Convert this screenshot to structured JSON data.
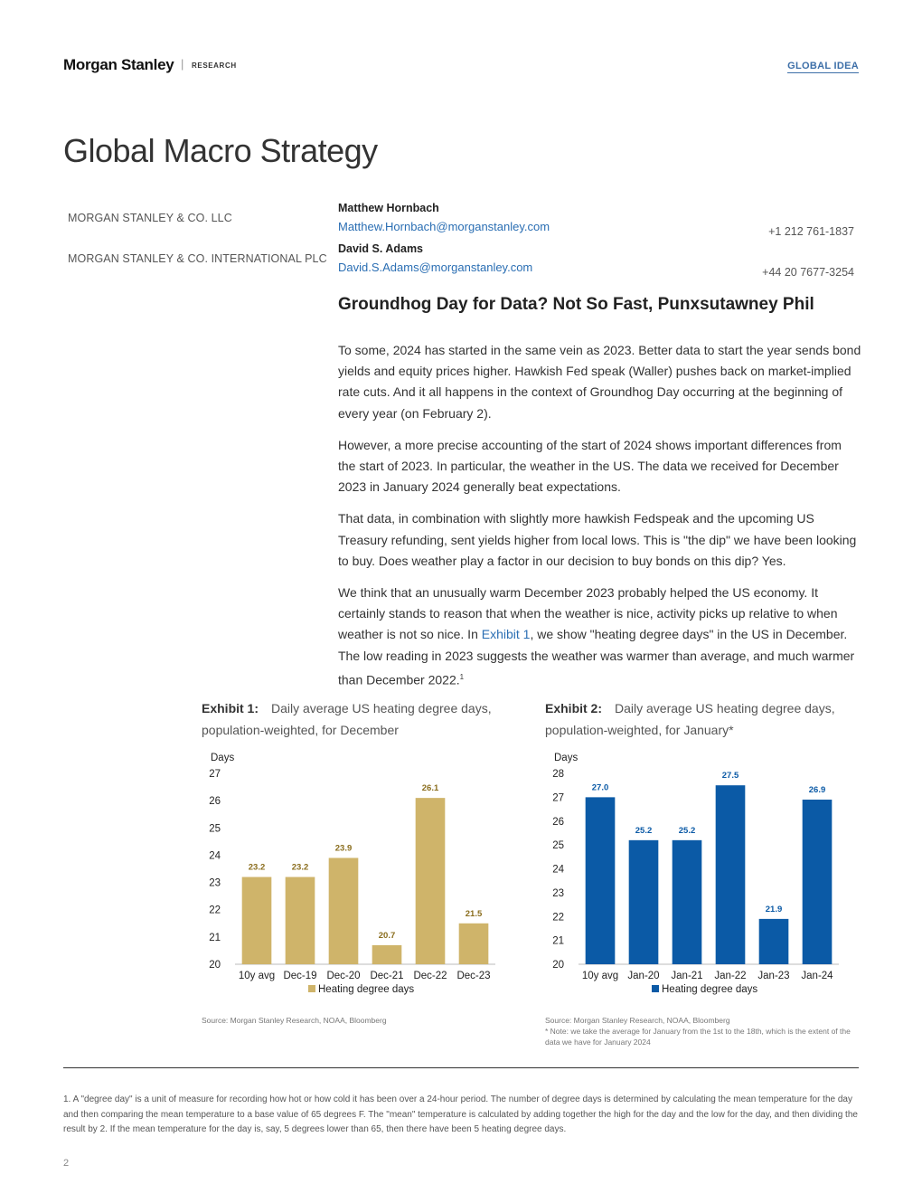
{
  "header": {
    "logo": "Morgan Stanley",
    "research": "RESEARCH",
    "tag": "GLOBAL IDEA"
  },
  "title": "Global Macro Strategy",
  "entities": [
    "MORGAN STANLEY & CO. LLC",
    "MORGAN STANLEY & CO. INTERNATIONAL PLC"
  ],
  "authors": [
    {
      "name": "Matthew Hornbach",
      "email": "Matthew.Hornbach@morganstanley.com",
      "phone": "+1 212 761-1837"
    },
    {
      "name": "David S. Adams",
      "email": "David.S.Adams@morganstanley.com",
      "phone": "+44 20 7677-3254"
    }
  ],
  "headline": "Groundhog Day for Data? Not So Fast, Punxsutawney Phil",
  "paragraphs": [
    "To some, 2024 has started in the same vein as 2023. Better data to start the year sends bond yields and equity prices higher. Hawkish Fed speak (Waller) pushes back on market-implied rate cuts. And it all happens in the context of Groundhog Day occurring at the beginning of every year (on February 2).",
    "However, a more precise accounting of the start of 2024 shows important differences from the start of 2023. In particular, the weather in the US. The data we received for December 2023 in January 2024 generally beat expectations.",
    "That data, in combination with slightly more hawkish Fedspeak and the upcoming US Treasury refunding, sent yields higher from local lows. This is \"the dip\" we have been looking to buy. Does weather play a factor in our decision to buy bonds on this dip? Yes."
  ],
  "paragraph4": {
    "before": "We think that an unusually warm December 2023 probably helped the US economy. It certainly stands to reason that when the weather is nice, activity picks up relative to when weather is not so nice. In ",
    "link": "Exhibit 1",
    "after": ", we show \"heating degree days\" in the US in December. The low reading in 2023 suggests the weather was warmer than average, and much warmer than December 2022.",
    "sup": "1"
  },
  "exhibits": [
    {
      "label": "Exhibit 1:",
      "caption": "Daily average US heating degree days, population-weighted, for December",
      "source": "Source: Morgan Stanley Research, NOAA, Bloomberg",
      "note": ""
    },
    {
      "label": "Exhibit 2:",
      "caption": "Daily average US heating degree days, population-weighted, for January*",
      "source": "Source: Morgan Stanley Research, NOAA, Bloomberg",
      "note": "* Note: we take the average for January from the 1st to the 18th, which is the extent of the data we have for January 2024"
    }
  ],
  "chart_data": [
    {
      "type": "bar",
      "ylabel": "Days",
      "ylim": [
        20,
        27
      ],
      "yticks": [
        "20",
        "21",
        "22",
        "23",
        "24",
        "25",
        "26",
        "27"
      ],
      "categories": [
        "10y avg",
        "Dec-19",
        "Dec-20",
        "Dec-21",
        "Dec-22",
        "Dec-23"
      ],
      "series": [
        {
          "name": "Heating degree days",
          "values": [
            23.2,
            23.2,
            23.9,
            20.7,
            26.1,
            21.5
          ],
          "labels": [
            "23.2",
            "23.2",
            "23.9",
            "20.7",
            "26.1",
            "21.5"
          ]
        }
      ],
      "color": "#cfb46a",
      "label_color": "#8a6d1d",
      "legend": "bottom"
    },
    {
      "type": "bar",
      "ylabel": "Days",
      "ylim": [
        20,
        28
      ],
      "yticks": [
        "20",
        "21",
        "22",
        "23",
        "24",
        "25",
        "26",
        "27",
        "28"
      ],
      "categories": [
        "10y avg",
        "Jan-20",
        "Jan-21",
        "Jan-22",
        "Jan-23",
        "Jan-24"
      ],
      "series": [
        {
          "name": "Heating degree days",
          "values": [
            27.0,
            25.2,
            25.2,
            27.5,
            21.9,
            26.9
          ],
          "labels": [
            "27.0",
            "25.2",
            "25.2",
            "27.5",
            "21.9",
            "26.9"
          ]
        }
      ],
      "color": "#0b5aa6",
      "label_color": "#0b5aa6",
      "legend": "bottom"
    }
  ],
  "footnote": "1.  A \"degree day\" is a unit of measure for recording how hot or how cold it has been over a 24-hour period. The number of degree days is determined by calculating the mean temperature for the day and then comparing the mean temperature to a base value of 65 degrees F. The \"mean\" temperature is calculated by adding together the high for the day and the low for the day, and then dividing the result by 2. If the mean temperature for the day is, say, 5 degrees lower than 65, then there have been 5 heating degree days.",
  "page_number": "2"
}
